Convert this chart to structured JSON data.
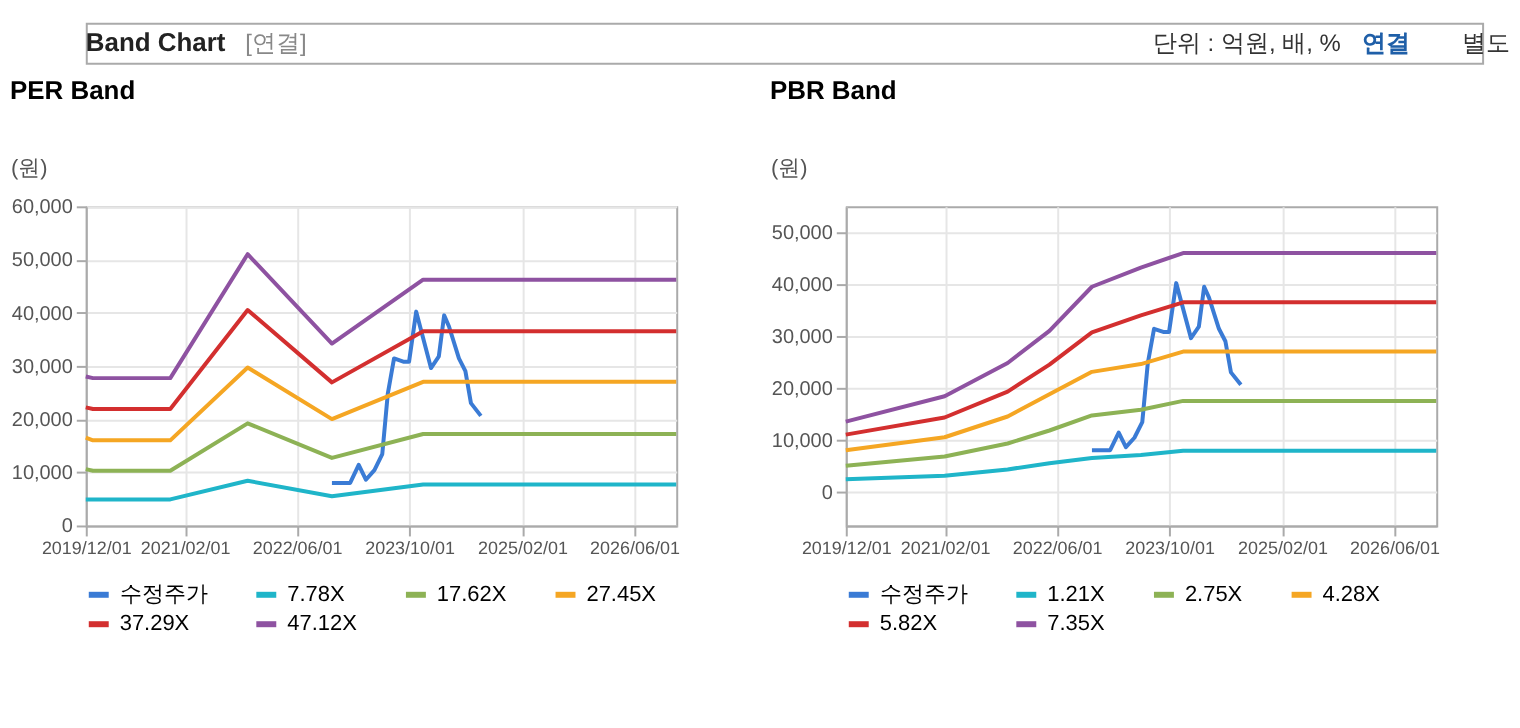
{
  "chart_data": [
    {
      "type": "line",
      "title": "PER Band",
      "ylabel": "(원)",
      "annotations": [
        "Band Chart",
        "[연결]",
        "단위 : 억원, 배, %",
        "연결",
        "별도"
      ],
      "xlim": [
        "2019-12-01",
        "2026-12-01"
      ],
      "xticks": [
        {
          "value": "2019-12-01",
          "label": "2019/12/01"
        },
        {
          "value": "2021-02-01",
          "label": "2021/02/01"
        },
        {
          "value": "2022-06-01",
          "label": "2022/06/01"
        },
        {
          "value": "2023-10-01",
          "label": "2023/10/01"
        },
        {
          "value": "2025-02-01",
          "label": "2025/02/01"
        },
        {
          "value": "2026-06-01",
          "label": "2026/06/01"
        }
      ],
      "ylim": [
        0,
        60000
      ],
      "yticks": [
        {
          "value": 0,
          "label": "0"
        },
        {
          "value": 10000,
          "label": "10,000"
        },
        {
          "value": 20000,
          "label": "20,000"
        },
        {
          "value": 30000,
          "label": "30,000"
        },
        {
          "value": 40000,
          "label": "40,000"
        },
        {
          "value": 50000,
          "label": "50,000"
        },
        {
          "value": 60000,
          "label": "60,000"
        }
      ],
      "grid": true,
      "legend": "bottom",
      "series": [
        {
          "name": "수정주가",
          "color": "#3a7bd5",
          "x": [
            "2022-11-01",
            "2023-01-19",
            "2023-02-25",
            "2023-03-28",
            "2023-05-04",
            "2023-06-07",
            "2023-07-01",
            "2023-07-28",
            "2023-09-06",
            "2023-10-01",
            "2023-11-01",
            "2024-01-04",
            "2024-02-07",
            "2024-03-01",
            "2024-03-22",
            "2024-05-04",
            "2024-06-01",
            "2024-06-25",
            "2024-08-07"
          ],
          "values": [
            8000,
            8000,
            11400,
            8600,
            10400,
            13400,
            24800,
            31400,
            30800,
            30800,
            40200,
            29600,
            31800,
            39500,
            37400,
            31400,
            29000,
            23000,
            20600
          ]
        },
        {
          "name": "7.78X",
          "color": "#1fb5c9",
          "x": [
            "2019-12-01",
            "2020-01-01",
            "2020-12-01",
            "2021-11-01",
            "2022-11-01",
            "2023-12-01",
            "2026-12-01"
          ],
          "values": [
            4900,
            4900,
            4900,
            8400,
            5500,
            7700,
            7700
          ]
        },
        {
          "name": "17.62X",
          "color": "#8db255",
          "x": [
            "2019-12-01",
            "2020-01-01",
            "2020-12-01",
            "2021-11-01",
            "2022-11-01",
            "2023-12-01",
            "2026-12-01"
          ],
          "values": [
            10600,
            10300,
            10300,
            19200,
            12700,
            17200,
            17200
          ]
        },
        {
          "name": "27.45X",
          "color": "#f5a623",
          "x": [
            "2019-12-01",
            "2020-01-01",
            "2020-12-01",
            "2021-11-01",
            "2022-11-01",
            "2023-12-01",
            "2026-12-01"
          ],
          "values": [
            16500,
            16000,
            16000,
            29700,
            20000,
            27000,
            27000
          ]
        },
        {
          "name": "37.29X",
          "color": "#d32f2f",
          "x": [
            "2019-12-01",
            "2020-01-01",
            "2020-12-01",
            "2021-11-01",
            "2022-11-01",
            "2023-12-01",
            "2026-12-01"
          ],
          "values": [
            22200,
            21900,
            21900,
            40500,
            26900,
            36500,
            36500
          ]
        },
        {
          "name": "47.12X",
          "color": "#8e52a1",
          "x": [
            "2019-12-01",
            "2020-01-01",
            "2020-12-01",
            "2021-11-01",
            "2022-11-01",
            "2023-12-01",
            "2026-12-01"
          ],
          "values": [
            28000,
            27700,
            27700,
            51000,
            34200,
            46200,
            46200
          ]
        }
      ]
    },
    {
      "type": "line",
      "title": "PBR Band",
      "ylabel": "(원)",
      "xlim": [
        "2019-12-01",
        "2026-12-01"
      ],
      "xticks": [
        {
          "value": "2019-12-01",
          "label": "2019/12/01"
        },
        {
          "value": "2021-02-01",
          "label": "2021/02/01"
        },
        {
          "value": "2022-06-01",
          "label": "2022/06/01"
        },
        {
          "value": "2023-10-01",
          "label": "2023/10/01"
        },
        {
          "value": "2025-02-01",
          "label": "2025/02/01"
        },
        {
          "value": "2026-06-01",
          "label": "2026/06/01"
        }
      ],
      "ylim": [
        -6500,
        55000
      ],
      "yticks": [
        {
          "value": 0,
          "label": "0"
        },
        {
          "value": 10000,
          "label": "10,000"
        },
        {
          "value": 20000,
          "label": "20,000"
        },
        {
          "value": 30000,
          "label": "30,000"
        },
        {
          "value": 40000,
          "label": "40,000"
        },
        {
          "value": 50000,
          "label": "50,000"
        }
      ],
      "grid": true,
      "legend": "bottom",
      "series": [
        {
          "name": "수정주가",
          "color": "#3a7bd5",
          "x": [
            "2022-11-01",
            "2023-01-19",
            "2023-02-25",
            "2023-03-28",
            "2023-05-04",
            "2023-06-07",
            "2023-07-01",
            "2023-07-28",
            "2023-09-06",
            "2023-10-01",
            "2023-11-01",
            "2024-01-04",
            "2024-02-07",
            "2024-03-01",
            "2024-03-22",
            "2024-05-04",
            "2024-06-01",
            "2024-06-25",
            "2024-08-07"
          ],
          "values": [
            8000,
            8000,
            11400,
            8600,
            10400,
            13400,
            24800,
            31400,
            30800,
            30800,
            40200,
            29600,
            31800,
            39500,
            37400,
            31400,
            29000,
            23000,
            20600
          ]
        },
        {
          "name": "1.21X",
          "color": "#1fb5c9",
          "x": [
            "2019-12-01",
            "2021-02-01",
            "2021-11-01",
            "2022-05-01",
            "2022-11-01",
            "2023-06-01",
            "2023-12-01",
            "2026-12-01"
          ],
          "values": [
            2400,
            3100,
            4300,
            5500,
            6500,
            7100,
            7900,
            7900
          ]
        },
        {
          "name": "2.75X",
          "color": "#8db255",
          "x": [
            "2019-12-01",
            "2021-02-01",
            "2021-11-01",
            "2022-05-01",
            "2022-11-01",
            "2023-06-01",
            "2023-12-01",
            "2026-12-01"
          ],
          "values": [
            5000,
            6800,
            9300,
            11800,
            14700,
            15800,
            17500,
            17500
          ]
        },
        {
          "name": "4.28X",
          "color": "#f5a623",
          "x": [
            "2019-12-01",
            "2021-02-01",
            "2021-11-01",
            "2022-05-01",
            "2022-11-01",
            "2023-06-01",
            "2023-12-01",
            "2026-12-01"
          ],
          "values": [
            8000,
            10500,
            14500,
            18800,
            23100,
            24600,
            27000,
            27000
          ]
        },
        {
          "name": "5.82X",
          "color": "#d32f2f",
          "x": [
            "2019-12-01",
            "2021-02-01",
            "2021-11-01",
            "2022-05-01",
            "2022-11-01",
            "2023-06-01",
            "2023-12-01",
            "2026-12-01"
          ],
          "values": [
            11000,
            14300,
            19300,
            24500,
            30700,
            34000,
            36500,
            36500
          ]
        },
        {
          "name": "7.35X",
          "color": "#8e52a1",
          "x": [
            "2019-12-01",
            "2021-02-01",
            "2021-11-01",
            "2022-05-01",
            "2022-11-01",
            "2023-06-01",
            "2023-12-01",
            "2026-12-01"
          ],
          "values": [
            13500,
            18400,
            24800,
            31000,
            39500,
            43200,
            46000,
            46000
          ]
        }
      ]
    }
  ]
}
